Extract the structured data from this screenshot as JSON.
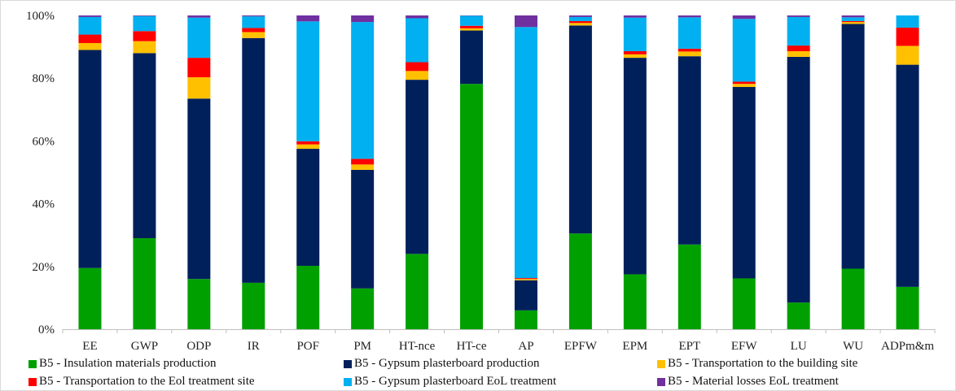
{
  "chart_data": {
    "type": "bar",
    "stacked": true,
    "normalized": true,
    "categories": [
      "EE",
      "GWP",
      "ODP",
      "IR",
      "POF",
      "PM",
      "HT-nce",
      "HT-ce",
      "AP",
      "EPFW",
      "EPM",
      "EPT",
      "EFW",
      "LU",
      "WU",
      "ADPm&m"
    ],
    "ylim": [
      0,
      100
    ],
    "yticks": [
      "0%",
      "20%",
      "40%",
      "60%",
      "80%",
      "100%"
    ],
    "grid": false,
    "legend_position": "bottom",
    "series": [
      {
        "name": "B5 - Insulation materials production",
        "color": "#00A000",
        "values": [
          19.5,
          29,
          16,
          14.8,
          20.2,
          13,
          24,
          78.2,
          6,
          30.5,
          17.5,
          27,
          16.2,
          8.5,
          19.3,
          13.5
        ]
      },
      {
        "name": "B5 - Gypsum plasterboard production",
        "color": "#00205B",
        "values": [
          69.5,
          59,
          57.5,
          78,
          37.3,
          37.8,
          55.5,
          17,
          9.6,
          66.3,
          69,
          60,
          61,
          78.3,
          78,
          70.8
        ]
      },
      {
        "name": "B5 - Transportation to the building site",
        "color": "#FFC000",
        "values": [
          2.2,
          3.8,
          6.8,
          1.9,
          1.4,
          1.7,
          2.8,
          0.7,
          0.4,
          0.8,
          1.1,
          1.5,
          1,
          1.8,
          0.6,
          6
        ]
      },
      {
        "name": "B5 - Transportation to the Eol treatment site",
        "color": "#FF0000",
        "values": [
          2.7,
          3.2,
          6.2,
          1.3,
          1,
          1.8,
          2.8,
          0.8,
          0.3,
          0.6,
          1,
          0.9,
          0.7,
          1.8,
          0.3,
          5.8
        ]
      },
      {
        "name": "B5 - Gypsum plasterboard EoL treatment",
        "color": "#00B0F0",
        "values": [
          5.6,
          4.8,
          12.8,
          3.7,
          38.2,
          43.6,
          14,
          3.2,
          80,
          1.3,
          10.7,
          10,
          20,
          9.1,
          1.2,
          3.9
        ]
      },
      {
        "name": "B5 - Material losses EoL treatment",
        "color": "#7030A0",
        "values": [
          0.5,
          0.2,
          0.7,
          0.3,
          1.9,
          2.1,
          0.9,
          0.1,
          3.7,
          0.5,
          0.7,
          0.6,
          1.1,
          0.5,
          0.6,
          0
        ]
      }
    ]
  }
}
